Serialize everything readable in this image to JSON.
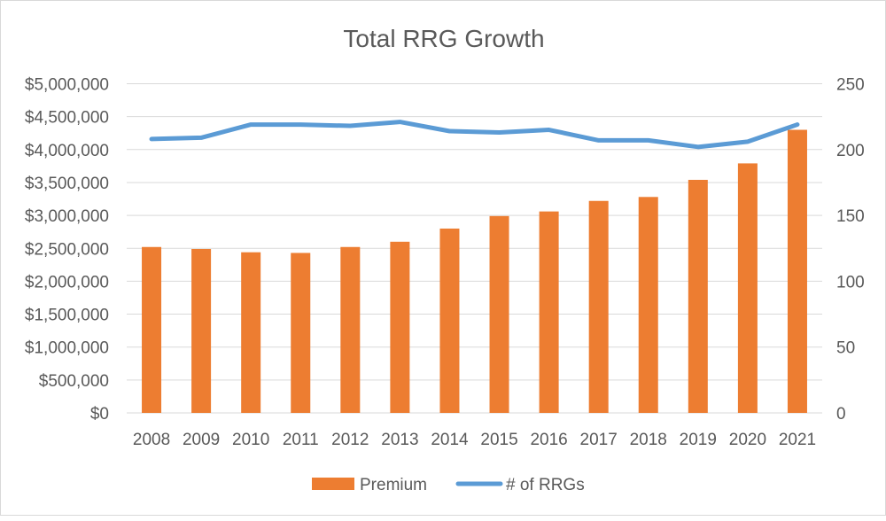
{
  "chart_data": {
    "type": "bar",
    "title": "Total RRG Growth",
    "categories": [
      "2008",
      "2009",
      "2010",
      "2011",
      "2012",
      "2013",
      "2014",
      "2015",
      "2016",
      "2017",
      "2018",
      "2019",
      "2020",
      "2021"
    ],
    "series": [
      {
        "name": "Premium",
        "type": "bar",
        "axis": "left",
        "color": "#ED7D31",
        "values": [
          2520000,
          2490000,
          2440000,
          2430000,
          2520000,
          2600000,
          2800000,
          2990000,
          3060000,
          3220000,
          3280000,
          3540000,
          3790000,
          4300000
        ]
      },
      {
        "name": "# of RRGs",
        "type": "line",
        "axis": "right",
        "color": "#5B9BD5",
        "values": [
          208,
          209,
          219,
          219,
          218,
          221,
          214,
          213,
          215,
          207,
          207,
          202,
          206,
          219
        ]
      }
    ],
    "left_axis": {
      "ylim": [
        0,
        5000000
      ],
      "ticks": [
        "$0",
        "$500,000",
        "$1,000,000",
        "$1,500,000",
        "$2,000,000",
        "$2,500,000",
        "$3,000,000",
        "$3,500,000",
        "$4,000,000",
        "$4,500,000",
        "$5,000,000"
      ]
    },
    "right_axis": {
      "ylim": [
        0,
        250
      ],
      "ticks": [
        "0",
        "50",
        "100",
        "150",
        "200",
        "250"
      ]
    },
    "grid": true,
    "legend": "bottom"
  }
}
